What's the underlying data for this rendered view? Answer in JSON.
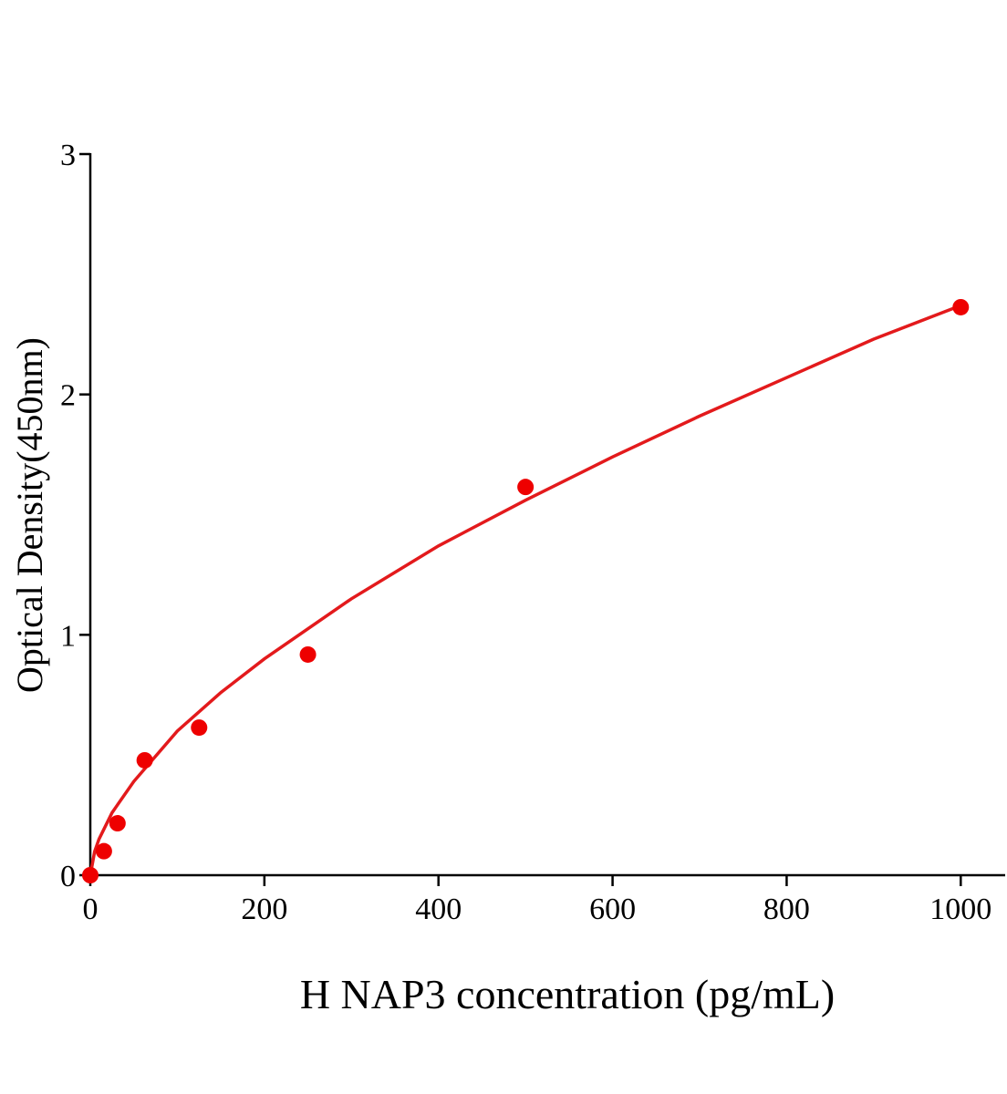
{
  "chart_data": {
    "type": "scatter",
    "x_label": "H NAP3 concentration (pg/mL)",
    "y_label": "Optical Density(450nm)",
    "xlim": [
      0,
      1050
    ],
    "xticks": [
      0,
      200,
      400,
      600,
      800,
      1000
    ],
    "ylim": [
      0,
      3
    ],
    "yticks": [
      0,
      1,
      2,
      3
    ],
    "series": [
      {
        "type": "scatter",
        "color": "#ee0000",
        "x": [
          0,
          15.6,
          31.25,
          62.5,
          125,
          250,
          500,
          1000
        ],
        "values": [
          0.0,
          0.1,
          0.216,
          0.478,
          0.614,
          0.918,
          1.615,
          2.363
        ]
      },
      {
        "type": "line",
        "color": "#e31a1c",
        "x": [
          0,
          5,
          10,
          25,
          50,
          100,
          150,
          200,
          300,
          400,
          500,
          600,
          700,
          800,
          900,
          1000
        ],
        "values": [
          0,
          0.099,
          0.15,
          0.26,
          0.39,
          0.6,
          0.76,
          0.9,
          1.15,
          1.37,
          1.56,
          1.74,
          1.91,
          2.07,
          2.23,
          2.37
        ]
      }
    ]
  }
}
